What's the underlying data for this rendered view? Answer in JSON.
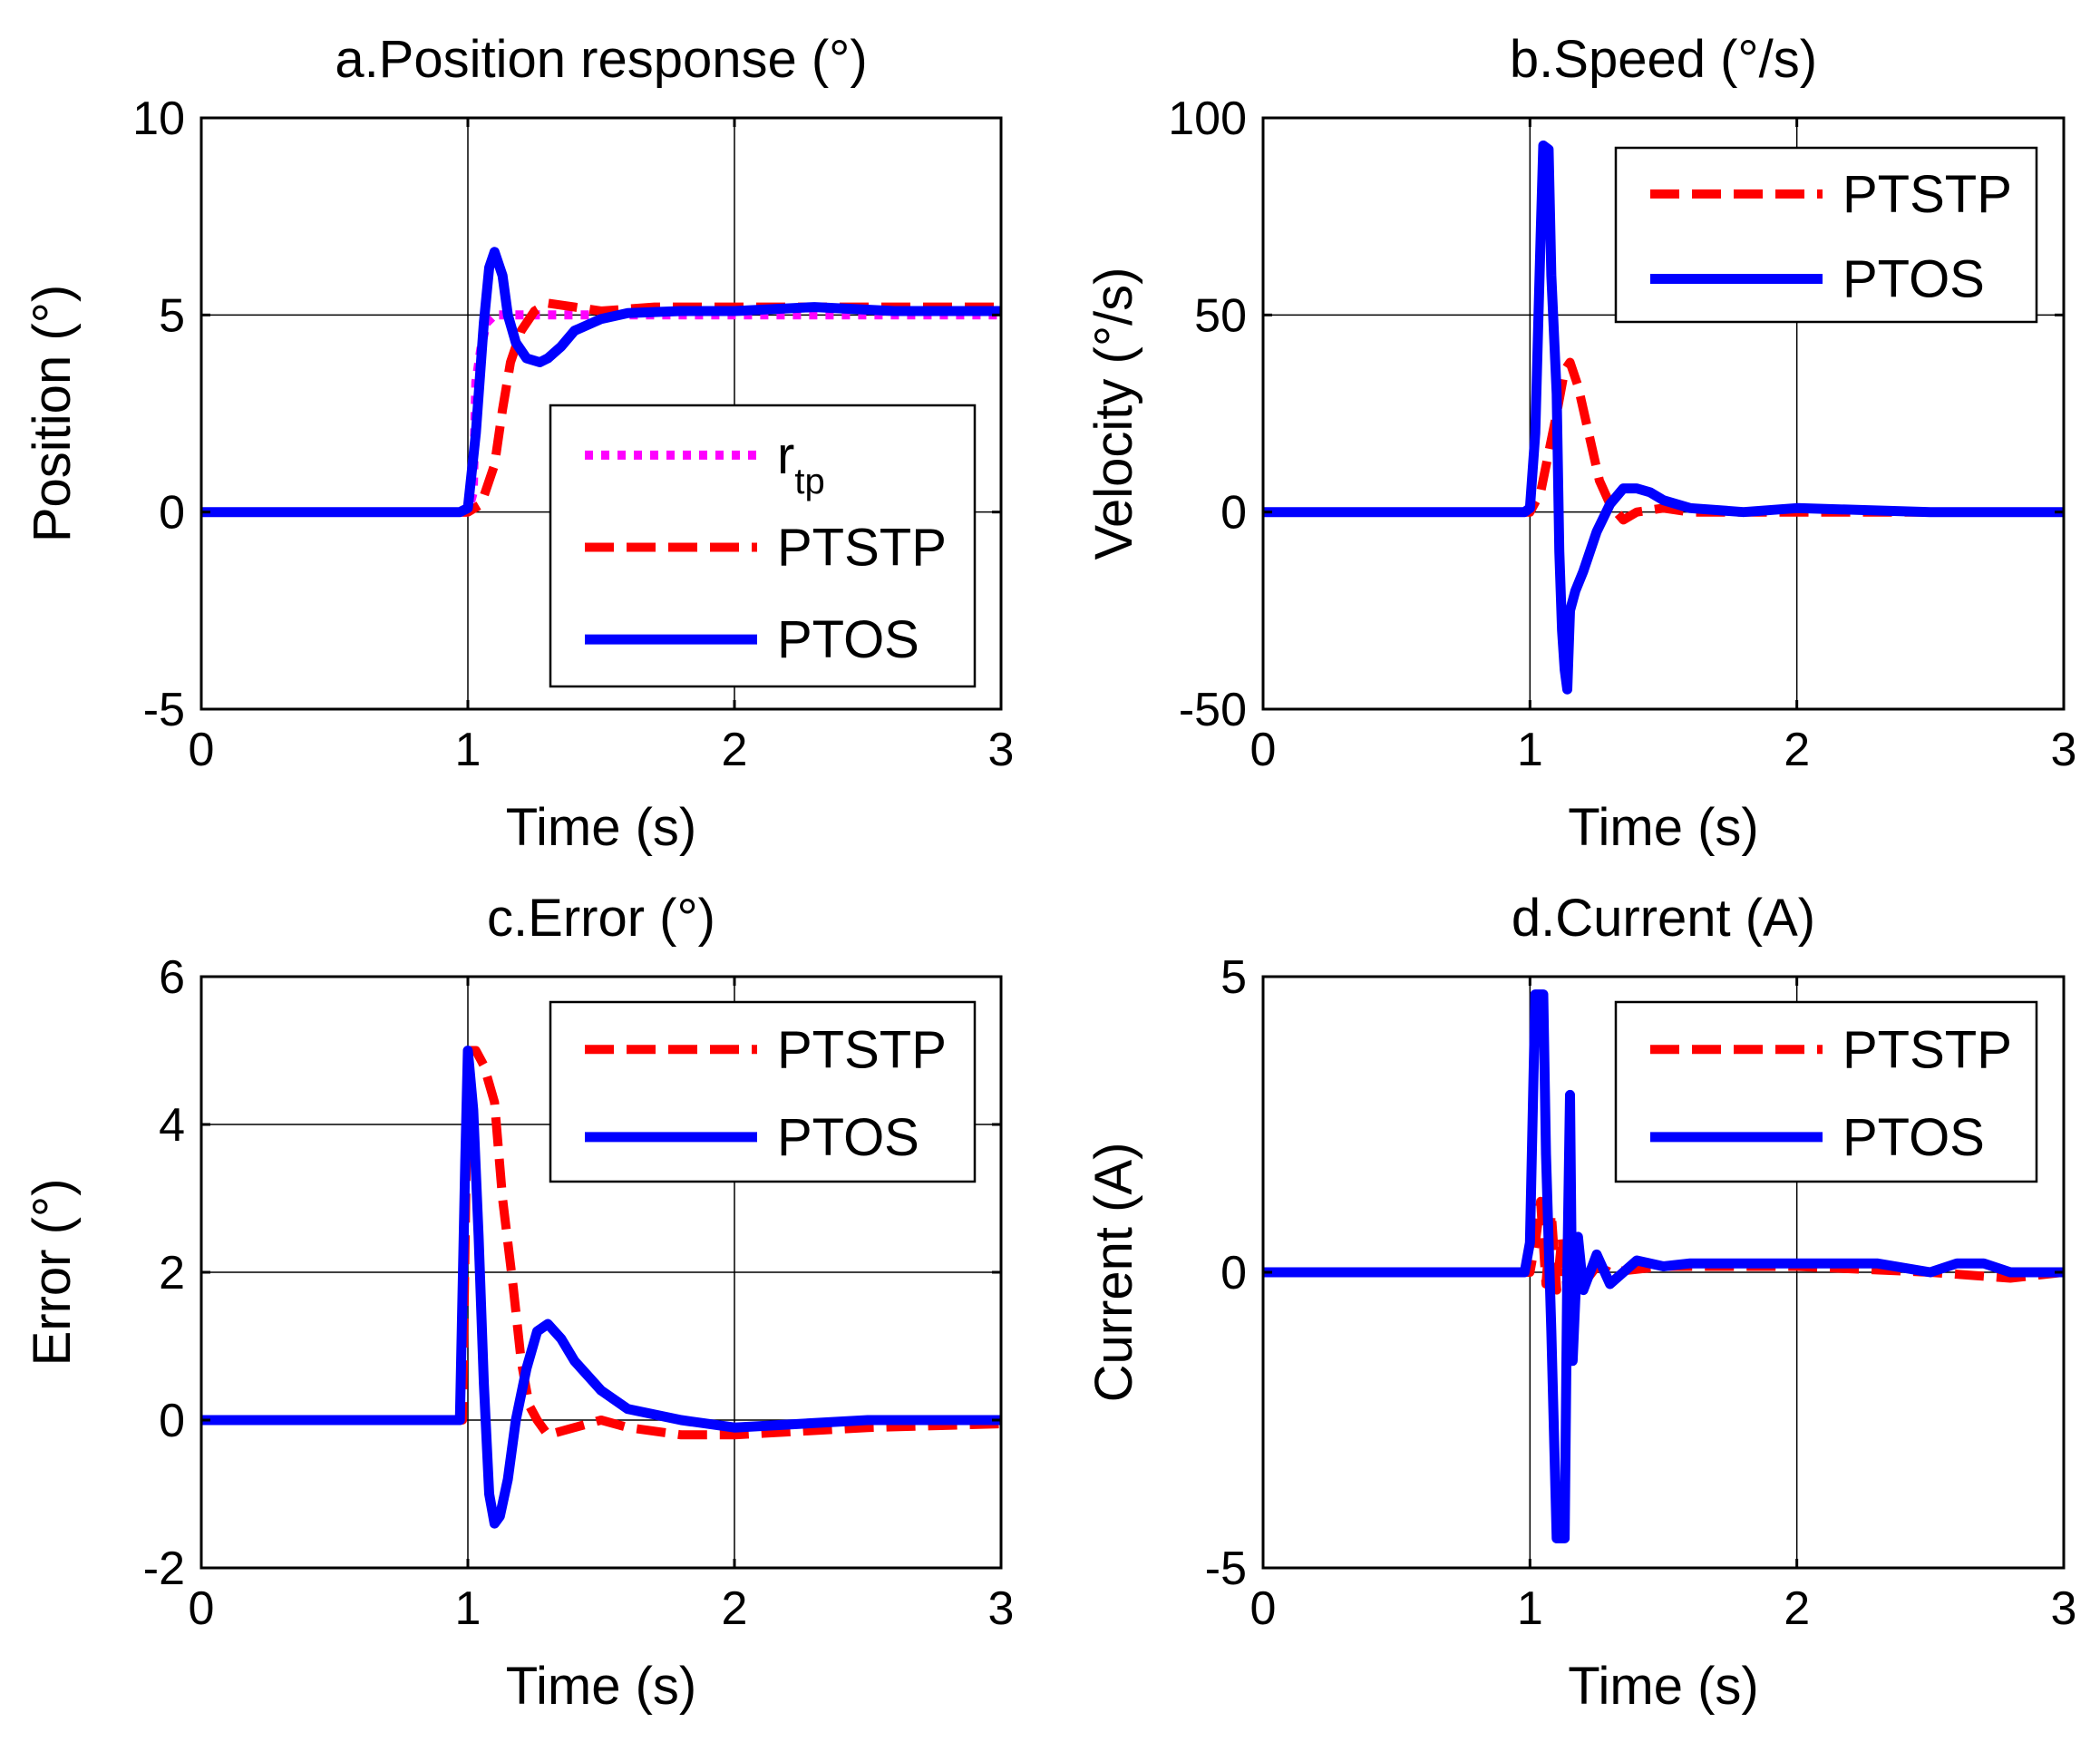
{
  "colors": {
    "rtp": "#ff00ff",
    "PTSTP": "#ff0000",
    "PTOS": "#0000ff",
    "grid": "#000000",
    "axes": "#000000"
  },
  "chart_data": [
    {
      "type": "line",
      "title": "a.Position response (°)",
      "xlabel": "Time (s)",
      "ylabel": "Position (°)",
      "xlim": [
        0,
        3
      ],
      "ylim": [
        -5,
        10
      ],
      "xticks": [
        0,
        1,
        2,
        3
      ],
      "xtick_labels": [
        "0",
        "1",
        "2",
        "3"
      ],
      "yticks": [
        -5,
        0,
        5,
        10
      ],
      "ytick_labels": [
        "-5",
        "0",
        "5",
        "10"
      ],
      "grid": true,
      "legend_position": "center-right",
      "series": [
        {
          "name": "r",
          "name_sub": "tp",
          "style": "dotted",
          "color": "#ff00ff",
          "x": [
            0,
            1.0,
            1.02,
            1.03,
            1.05,
            1.07,
            1.1,
            1.15,
            1.2,
            3.0
          ],
          "y": [
            0,
            0,
            0.5,
            3.3,
            4.2,
            4.8,
            5.0,
            5.0,
            5.0,
            5.0
          ]
        },
        {
          "name": "PTSTP",
          "style": "dashed",
          "color": "#ff0000",
          "x": [
            0,
            1.0,
            1.05,
            1.1,
            1.13,
            1.16,
            1.2,
            1.25,
            1.3,
            1.4,
            1.5,
            1.7,
            2.0,
            2.5,
            3.0
          ],
          "y": [
            0,
            0,
            0.2,
            1.2,
            2.6,
            3.8,
            4.6,
            5.1,
            5.3,
            5.2,
            5.1,
            5.2,
            5.2,
            5.2,
            5.2
          ]
        },
        {
          "name": "PTOS",
          "style": "solid",
          "color": "#0000ff",
          "x": [
            0,
            0.97,
            1.0,
            1.03,
            1.06,
            1.08,
            1.1,
            1.13,
            1.15,
            1.18,
            1.22,
            1.27,
            1.3,
            1.35,
            1.4,
            1.5,
            1.6,
            1.8,
            2.0,
            2.3,
            2.6,
            3.0
          ],
          "y": [
            0,
            0,
            0.1,
            2.0,
            4.8,
            6.2,
            6.6,
            6.0,
            5.0,
            4.3,
            3.9,
            3.8,
            3.9,
            4.2,
            4.6,
            4.9,
            5.05,
            5.1,
            5.1,
            5.2,
            5.1,
            5.1
          ]
        }
      ]
    },
    {
      "type": "line",
      "title": "b.Speed (°/s)",
      "xlabel": "Time (s)",
      "ylabel": "Velocity (°/s)",
      "xlim": [
        0,
        3
      ],
      "ylim": [
        -50,
        100
      ],
      "xticks": [
        0,
        1,
        2,
        3
      ],
      "xtick_labels": [
        "0",
        "1",
        "2",
        "3"
      ],
      "yticks": [
        -50,
        0,
        50,
        100
      ],
      "ytick_labels": [
        "-50",
        "0",
        "50",
        "100"
      ],
      "grid": true,
      "legend_position": "top-right",
      "series": [
        {
          "name": "PTSTP",
          "style": "dashed",
          "color": "#ff0000",
          "x": [
            0,
            1.0,
            1.04,
            1.07,
            1.1,
            1.13,
            1.15,
            1.18,
            1.22,
            1.26,
            1.3,
            1.35,
            1.4,
            1.5,
            1.6,
            2.0,
            2.5,
            3.0
          ],
          "y": [
            0,
            0,
            5,
            15,
            25,
            36,
            38,
            32,
            20,
            8,
            2,
            -2,
            0,
            1,
            0,
            0,
            0,
            0
          ]
        },
        {
          "name": "PTOS",
          "style": "solid",
          "color": "#0000ff",
          "x": [
            0,
            0.98,
            1.0,
            1.02,
            1.04,
            1.05,
            1.07,
            1.08,
            1.1,
            1.11,
            1.12,
            1.13,
            1.14,
            1.15,
            1.17,
            1.2,
            1.25,
            1.3,
            1.35,
            1.4,
            1.45,
            1.5,
            1.6,
            1.8,
            2.0,
            2.5,
            3.0
          ],
          "y": [
            0,
            0,
            1,
            20,
            70,
            93,
            92,
            60,
            30,
            -10,
            -30,
            -40,
            -45,
            -25,
            -20,
            -15,
            -5,
            2,
            6,
            6,
            5,
            3,
            1,
            0,
            1,
            0,
            0
          ]
        }
      ]
    },
    {
      "type": "line",
      "title": "c.Error (°)",
      "xlabel": "Time (s)",
      "ylabel": "Error (°)",
      "xlim": [
        0,
        3
      ],
      "ylim": [
        -2,
        6
      ],
      "xticks": [
        0,
        1,
        2,
        3
      ],
      "xtick_labels": [
        "0",
        "1",
        "2",
        "3"
      ],
      "yticks": [
        -2,
        0,
        2,
        4,
        6
      ],
      "ytick_labels": [
        "-2",
        "0",
        "2",
        "4",
        "6"
      ],
      "grid": true,
      "legend_position": "top-right",
      "series": [
        {
          "name": "PTSTP",
          "style": "dashed",
          "color": "#ff0000",
          "x": [
            0,
            0.98,
            1.0,
            1.03,
            1.06,
            1.1,
            1.13,
            1.17,
            1.2,
            1.23,
            1.26,
            1.3,
            1.4,
            1.5,
            1.6,
            1.8,
            2.0,
            2.5,
            3.0
          ],
          "y": [
            0,
            0,
            5.0,
            5.0,
            4.8,
            4.3,
            3.0,
            1.8,
            0.8,
            0.2,
            0.0,
            -0.2,
            -0.1,
            0.0,
            -0.1,
            -0.2,
            -0.2,
            -0.1,
            -0.05
          ]
        },
        {
          "name": "PTOS",
          "style": "solid",
          "color": "#0000ff",
          "x": [
            0,
            0.97,
            0.99,
            1.0,
            1.02,
            1.04,
            1.06,
            1.08,
            1.1,
            1.12,
            1.15,
            1.18,
            1.22,
            1.26,
            1.3,
            1.35,
            1.4,
            1.5,
            1.6,
            1.8,
            2.0,
            2.5,
            3.0
          ],
          "y": [
            0,
            0,
            3.5,
            5.0,
            4.2,
            2.5,
            0.5,
            -1.0,
            -1.4,
            -1.3,
            -0.8,
            0.0,
            0.7,
            1.2,
            1.3,
            1.1,
            0.8,
            0.4,
            0.15,
            0.0,
            -0.1,
            0.0,
            0.0
          ]
        }
      ]
    },
    {
      "type": "line",
      "title": "d.Current (A)",
      "xlabel": "Time (s)",
      "ylabel": "Current (A)",
      "xlim": [
        0,
        3
      ],
      "ylim": [
        -5,
        5
      ],
      "xticks": [
        0,
        1,
        2,
        3
      ],
      "xtick_labels": [
        "0",
        "1",
        "2",
        "3"
      ],
      "yticks": [
        -5,
        0,
        5
      ],
      "ytick_labels": [
        "-5",
        "0",
        "5"
      ],
      "grid": true,
      "legend_position": "top-right",
      "series": [
        {
          "name": "PTSTP",
          "style": "dashed",
          "color": "#ff0000",
          "x": [
            0,
            1.0,
            1.02,
            1.04,
            1.06,
            1.08,
            1.1,
            1.12,
            1.14,
            1.16,
            1.2,
            1.25,
            1.3,
            1.5,
            2.0,
            2.5,
            2.8,
            3.0
          ],
          "y": [
            0,
            0,
            0.5,
            1.2,
            -0.2,
            1.0,
            -0.3,
            0.6,
            -0.3,
            0.3,
            -0.2,
            0.1,
            0.0,
            0.1,
            0.1,
            0.0,
            -0.1,
            0.0
          ]
        },
        {
          "name": "PTOS",
          "style": "solid",
          "color": "#0000ff",
          "x": [
            0,
            0.98,
            1.0,
            1.02,
            1.04,
            1.05,
            1.06,
            1.08,
            1.1,
            1.12,
            1.13,
            1.14,
            1.15,
            1.16,
            1.18,
            1.2,
            1.25,
            1.3,
            1.4,
            1.5,
            1.6,
            1.8,
            2.0,
            2.2,
            2.3,
            2.5,
            2.6,
            2.7,
            2.8,
            3.0
          ],
          "y": [
            0,
            0,
            0.5,
            4.7,
            4.7,
            4.7,
            2.0,
            -1.0,
            -4.5,
            -4.5,
            -4.5,
            0.0,
            3.0,
            -1.5,
            0.6,
            -0.3,
            0.3,
            -0.2,
            0.2,
            0.1,
            0.15,
            0.15,
            0.15,
            0.15,
            0.15,
            0.0,
            0.15,
            0.15,
            0.0,
            0.0
          ]
        }
      ]
    }
  ]
}
